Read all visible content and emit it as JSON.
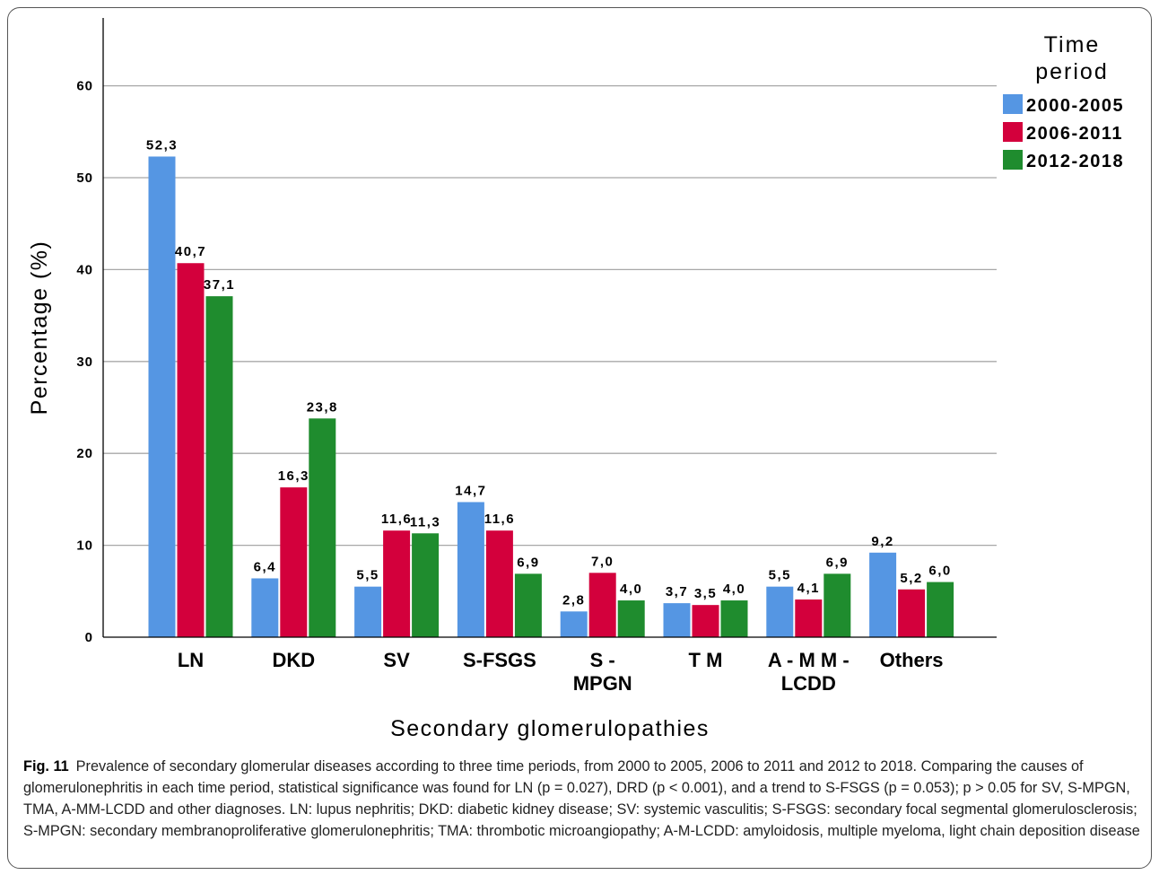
{
  "chart_data": {
    "type": "bar",
    "xlabel": "Secondary glomerulopathies",
    "ylabel": "Percentage (%)",
    "ylim": [
      0,
      60
    ],
    "yticks": [
      "0",
      "10",
      "20",
      "30",
      "40",
      "50",
      "60"
    ],
    "grid": true,
    "legend": {
      "title_lines": [
        "Time",
        "period"
      ],
      "placement": "top-right"
    },
    "categories": [
      [
        "LN"
      ],
      [
        "DKD"
      ],
      [
        "SV"
      ],
      [
        "S-FSGS"
      ],
      [
        "S -",
        "MPGN"
      ],
      [
        "T M"
      ],
      [
        "A - M M -",
        "LCDD"
      ],
      [
        "Others"
      ]
    ],
    "series": [
      {
        "name": "2000-2005",
        "color": "#5596e3",
        "values": [
          52.3,
          6.4,
          5.5,
          14.7,
          2.8,
          3.7,
          5.5,
          9.2
        ],
        "labels": [
          "52,3",
          "6,4",
          "5,5",
          "14,7",
          "2,8",
          "3,7",
          "5,5",
          "9,2"
        ]
      },
      {
        "name": "2006-2011",
        "color": "#d3003c",
        "values": [
          40.7,
          16.3,
          11.6,
          11.6,
          7.0,
          3.5,
          4.1,
          5.2
        ],
        "labels": [
          "40,7",
          "16,3",
          "11,6",
          "11,6",
          "7,0",
          "3,5",
          "4,1",
          "5,2"
        ]
      },
      {
        "name": "2012-2018",
        "color": "#1f8c2e",
        "values": [
          37.1,
          23.8,
          11.3,
          6.9,
          4.0,
          4.0,
          6.9,
          6.0
        ],
        "labels": [
          "37,1",
          "23,8",
          "11,3",
          "6,9",
          "4,0",
          "4,0",
          "6,9",
          "6,0"
        ]
      }
    ]
  },
  "caption": {
    "label": "Fig. 11",
    "text": "Prevalence of secondary glomerular diseases according to three time periods, from 2000 to 2005, 2006 to 2011 and 2012 to 2018. Comparing the causes of glomerulonephritis in each time period, statistical significance was found for LN (p = 0.027), DRD (p < 0.001), and a trend to S-FSGS (p = 0.053); p > 0.05 for SV, S-MPGN, TMA, A-MM-LCDD and other diagnoses. LN: lupus nephritis; DKD: diabetic kidney disease; SV: systemic vasculitis; S-FSGS: secondary focal segmental glomerulosclerosis; S-MPGN: secondary membranoproliferative glomerulonephritis; TMA: thrombotic microangiopathy; A-M-LCDD: amyloidosis, multiple myeloma, light chain deposition disease"
  }
}
